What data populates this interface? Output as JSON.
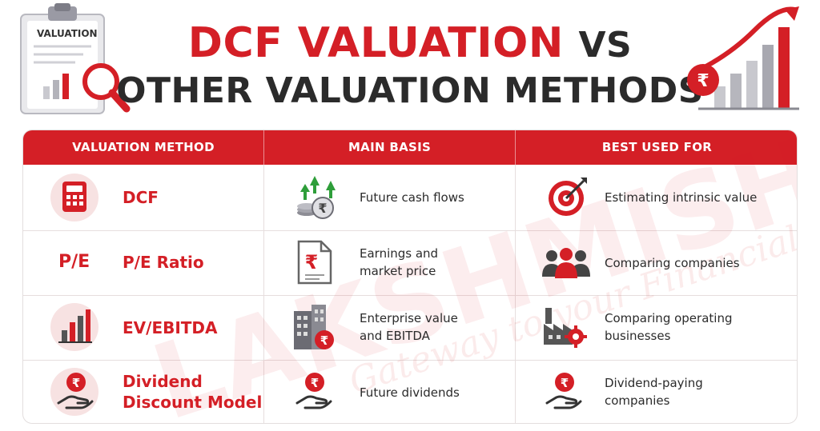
{
  "header": {
    "title_part1": "DCF VALUATION",
    "title_part2": "VS",
    "title_line2": "OTHER VALUATION METHODS",
    "clipboard_label": "VALUATION",
    "rupee_symbol": "₹"
  },
  "watermark": {
    "brand": "LAKSHMISHREE",
    "tagline": "Gateway to your Financial Goals"
  },
  "table": {
    "headers": [
      "VALUATION METHOD",
      "MAIN BASIS",
      "BEST USED FOR"
    ],
    "rows": [
      {
        "method": "DCF",
        "method_icon": "calculator-icon",
        "basis": "Future cash flows",
        "basis_icon": "coins-growth-icon",
        "best": "Estimating intrinsic value",
        "best_icon": "target-icon"
      },
      {
        "method_prefix": "P/E",
        "method": "P/E Ratio",
        "basis": "Earnings and market price",
        "basis_line1": "Earnings and",
        "basis_line2": "market price",
        "basis_icon": "rupee-document-icon",
        "best": "Comparing companies",
        "best_icon": "people-group-icon"
      },
      {
        "method": "EV/EBITDA",
        "method_icon": "bar-chart-icon",
        "basis": "Enterprise value and EBITDA",
        "basis_line1": "Enterprise value",
        "basis_line2": "and EBITDA",
        "basis_icon": "building-rupee-icon",
        "best": "Comparing operating businesses",
        "best_line1": "Comparing operating",
        "best_line2": "businesses",
        "best_icon": "factory-gear-icon"
      },
      {
        "method": "Dividend Discount Model",
        "method_line1": "Dividend",
        "method_line2": "Discount Model",
        "method_icon": "hand-rupee-icon",
        "basis": "Future dividends",
        "basis_icon": "hand-rupee-icon",
        "best": "Dividend-paying companies",
        "best_line1": "Dividend-paying",
        "best_line2": "companies",
        "best_icon": "hand-rupee-icon"
      }
    ]
  },
  "colors": {
    "accent": "#d41f26",
    "dark": "#2b2b2b",
    "header_text": "#ffffff",
    "soft_pink": "#f7e2e2"
  }
}
